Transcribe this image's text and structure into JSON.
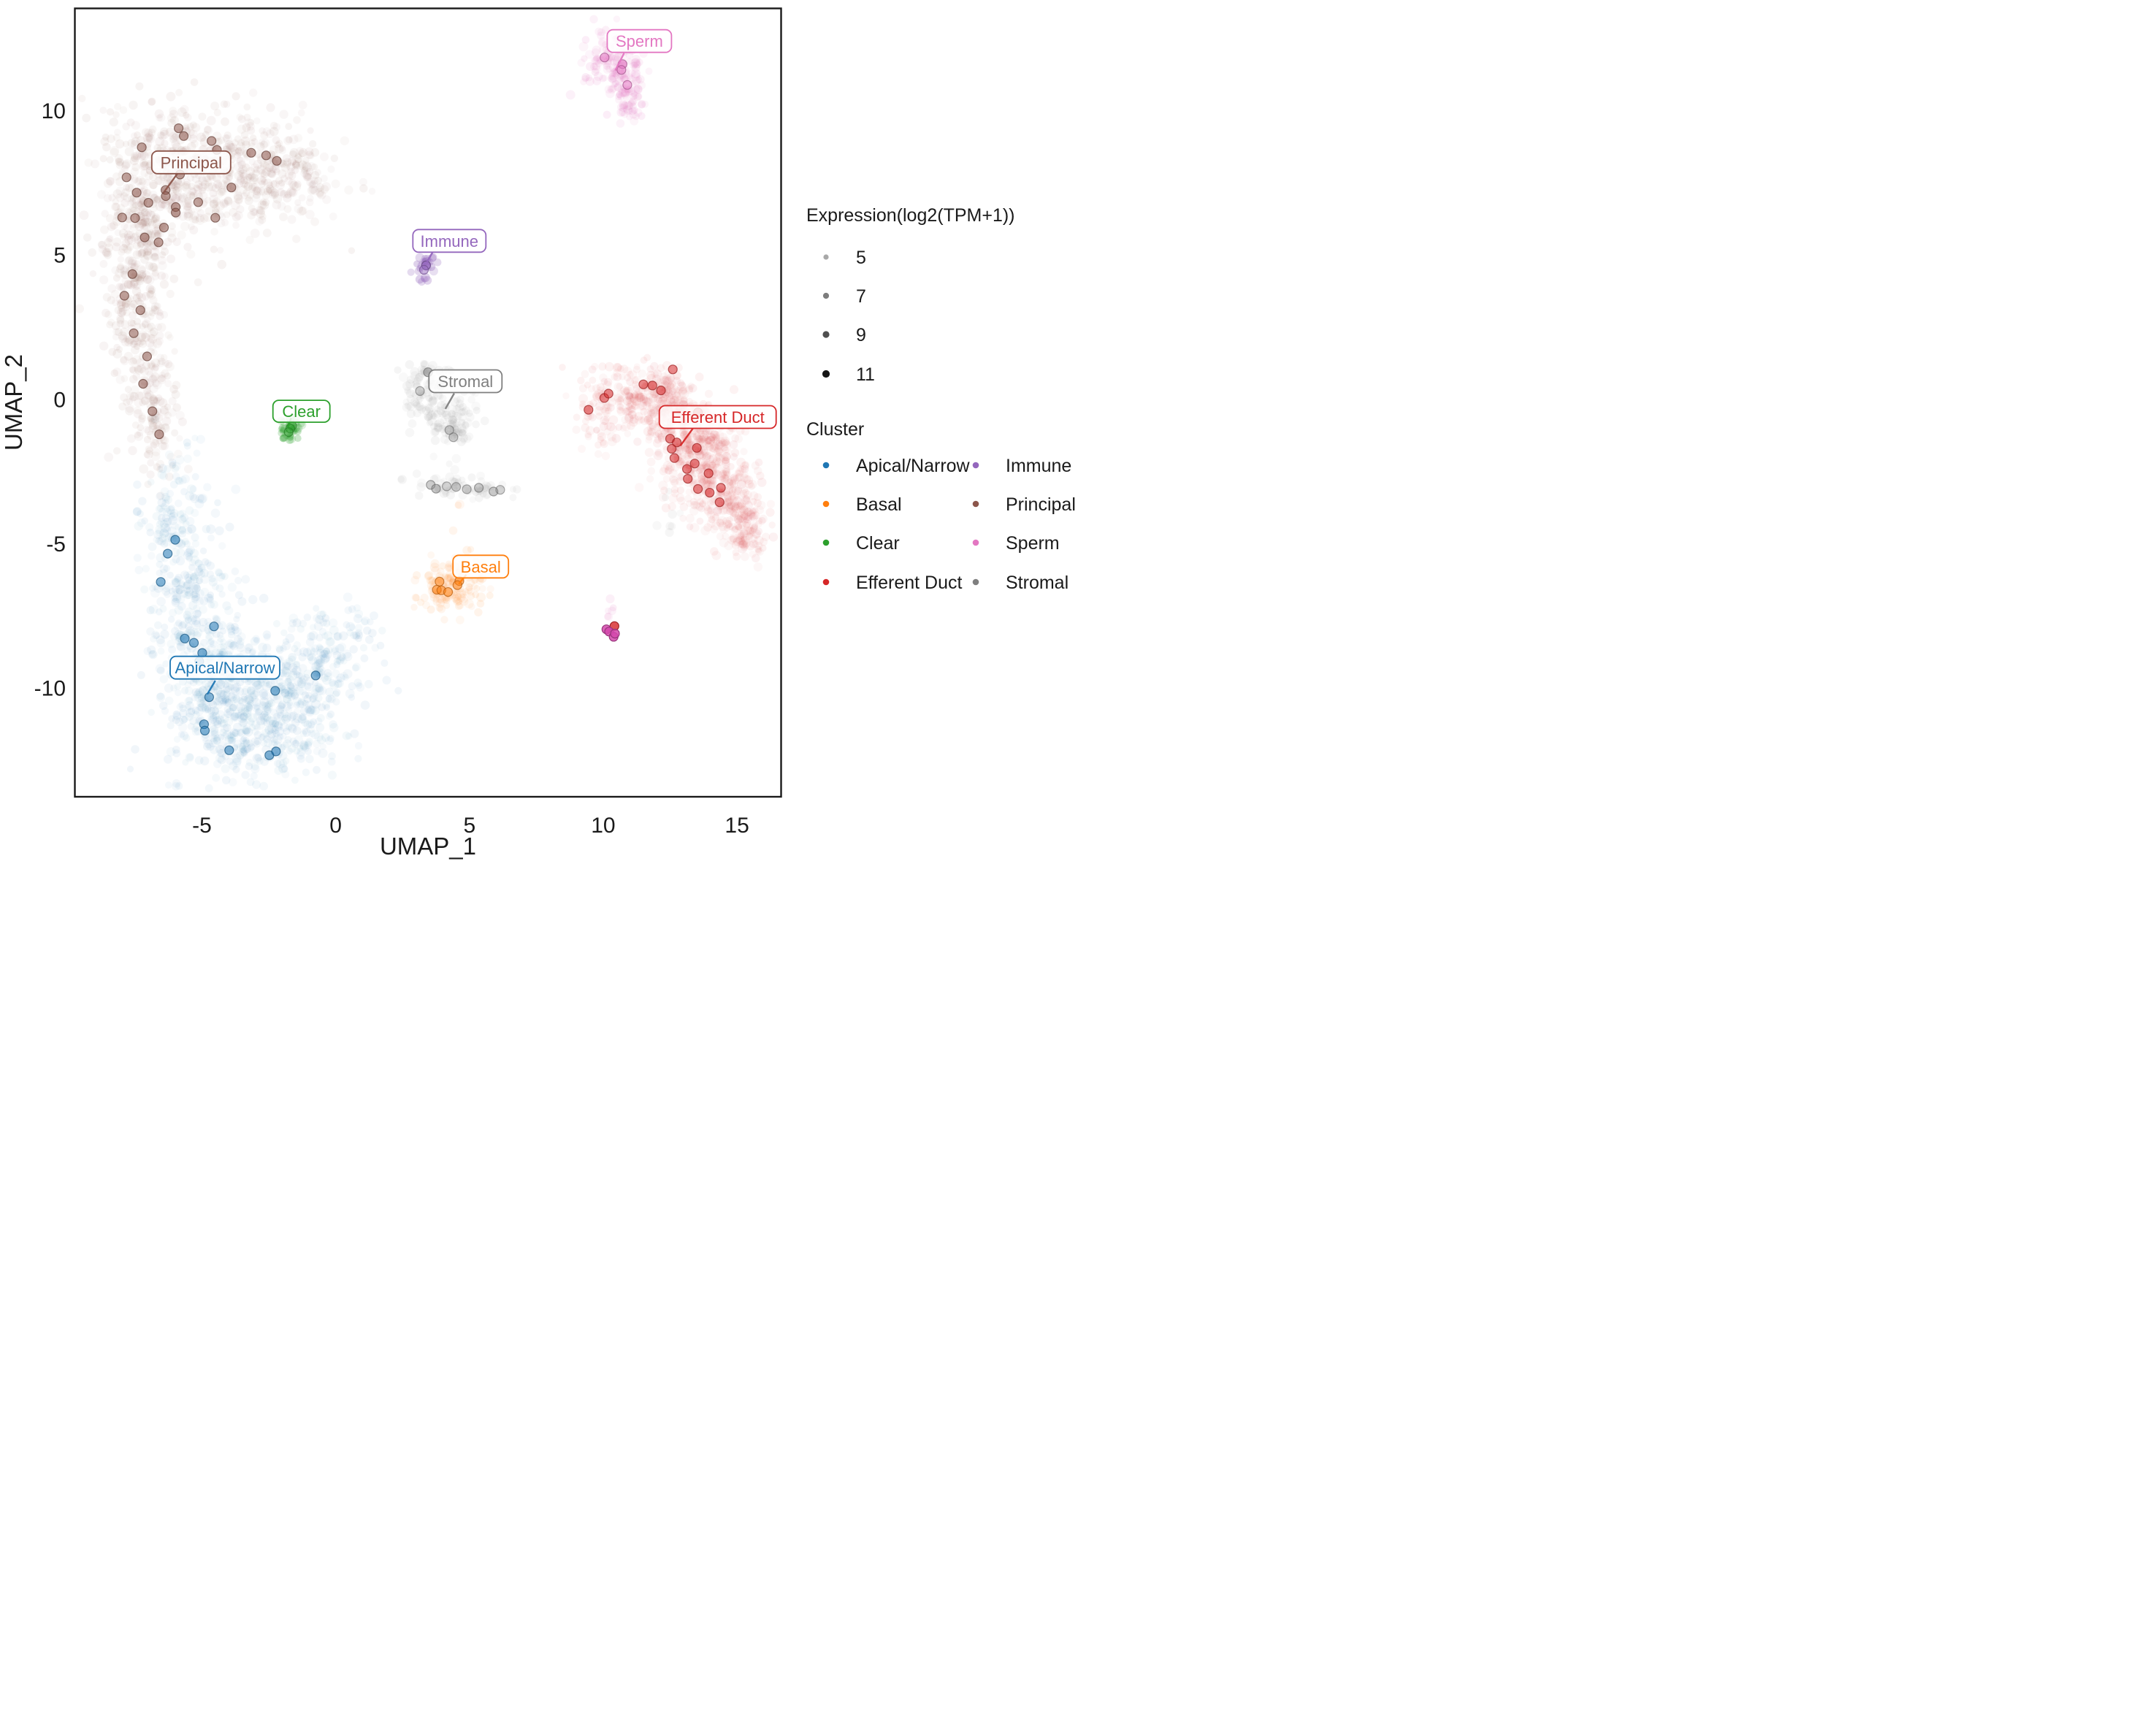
{
  "figure": {
    "background": "#ffffff",
    "border_color": "#1a1a1a"
  },
  "legend": {
    "cluster_title": "Cluster",
    "size_title": "Expression(log2(TPM+1))",
    "size_entries": [
      {
        "value": "5",
        "color": "#a8a8a8",
        "r": 3.6
      },
      {
        "value": "7",
        "color": "#7d7d7d",
        "r": 4.1
      },
      {
        "value": "9",
        "color": "#4f4f4f",
        "r": 4.6
      },
      {
        "value": "11",
        "color": "#161616",
        "r": 5.1
      }
    ],
    "cluster_columns": [
      [
        {
          "label": "Apical/Narrow",
          "color": "#1f77b4"
        },
        {
          "label": "Basal",
          "color": "#ff7f0e"
        },
        {
          "label": "Clear",
          "color": "#2ca02c"
        },
        {
          "label": "Efferent Duct",
          "color": "#d62728"
        }
      ],
      [
        {
          "label": "Immune",
          "color": "#9467bd"
        },
        {
          "label": "Principal",
          "color": "#8c564b"
        },
        {
          "label": "Sperm",
          "color": "#e377c2"
        },
        {
          "label": "Stromal",
          "color": "#7f7f7f"
        }
      ]
    ]
  },
  "chart_data": {
    "type": "scatter",
    "title": "",
    "xlabel": "UMAP_1",
    "ylabel": "UMAP_2",
    "xlim": [
      -9.75,
      16.65
    ],
    "ylim": [
      -13.75,
      13.55
    ],
    "xticks": [
      -5,
      0,
      5,
      10,
      15
    ],
    "yticks": [
      10,
      5,
      0,
      -5,
      -10
    ],
    "size_encoding": {
      "title": "Expression(log2(TPM+1))",
      "levels": [
        5,
        7,
        9,
        11
      ]
    },
    "clusters": [
      {
        "name": "Principal",
        "id": "principal",
        "color": "#8c564b",
        "cloud_alpha": 0.055,
        "label": {
          "text": "Principal",
          "x": -5.4,
          "y": 8.22,
          "w": 108,
          "h": 31,
          "leader": [
            -5.9,
            7.85,
            -6.45,
            7.15
          ]
        },
        "blobs": [
          [
            -4.6,
            8.4,
            2.0,
            0.95,
            -8,
            420
          ],
          [
            -2.2,
            7.6,
            0.9,
            0.75,
            -25,
            120
          ],
          [
            -5.7,
            7.0,
            1.3,
            1.0,
            0,
            200
          ],
          [
            -7.3,
            6.2,
            0.75,
            1.3,
            -12,
            200
          ],
          [
            -7.5,
            3.8,
            0.6,
            1.4,
            -5,
            170
          ],
          [
            -7.1,
            1.4,
            0.55,
            1.3,
            8,
            130
          ],
          [
            -6.7,
            -0.9,
            0.5,
            1.0,
            12,
            90
          ],
          [
            -1.25,
            8.2,
            0.22,
            0.22,
            0,
            8
          ],
          [
            -0.65,
            7.25,
            0.22,
            0.22,
            0,
            8
          ]
        ],
        "high_expression_points": [
          [
            -5.87,
            9.4
          ],
          [
            -5.68,
            9.13
          ],
          [
            -4.64,
            8.96
          ],
          [
            -4.44,
            8.65
          ],
          [
            -7.25,
            8.74
          ],
          [
            -3.16,
            8.55
          ],
          [
            -2.6,
            8.46
          ],
          [
            -2.2,
            8.27
          ],
          [
            -7.82,
            7.7
          ],
          [
            -5.82,
            7.8
          ],
          [
            -6.36,
            7.26
          ],
          [
            -7.44,
            7.17
          ],
          [
            -7.0,
            6.82
          ],
          [
            -6.35,
            7.05
          ],
          [
            -5.98,
            6.67
          ],
          [
            -5.14,
            6.84
          ],
          [
            -5.98,
            6.48
          ],
          [
            -7.98,
            6.31
          ],
          [
            -7.5,
            6.29
          ],
          [
            -6.42,
            5.96
          ],
          [
            -7.14,
            5.62
          ],
          [
            -6.62,
            5.45
          ],
          [
            -3.9,
            7.35
          ],
          [
            -4.5,
            6.3
          ],
          [
            -7.6,
            4.35
          ],
          [
            -7.9,
            3.6
          ],
          [
            -7.3,
            3.1
          ],
          [
            -7.55,
            2.3
          ],
          [
            -7.05,
            1.5
          ],
          [
            -7.2,
            0.55
          ],
          [
            -6.85,
            -0.4
          ],
          [
            -6.6,
            -1.2
          ]
        ]
      },
      {
        "name": "Apical/Narrow",
        "id": "apical-narrow",
        "color": "#1f77b4",
        "cloud_alpha": 0.05,
        "label": {
          "text": "Apical/Narrow",
          "x": -4.14,
          "y": -9.28,
          "w": 150,
          "h": 31,
          "leader": [
            -4.5,
            -9.73,
            -4.8,
            -10.2
          ]
        },
        "blobs": [
          [
            -6.1,
            -4.3,
            0.5,
            1.3,
            -6,
            150
          ],
          [
            -5.5,
            -7.0,
            0.65,
            1.3,
            -14,
            190
          ],
          [
            -4.6,
            -9.6,
            0.9,
            1.3,
            -28,
            280
          ],
          [
            -3.2,
            -11.5,
            1.3,
            1.0,
            8,
            300
          ],
          [
            -3.0,
            -9.7,
            1.2,
            0.9,
            0,
            100
          ],
          [
            -1.4,
            -10.6,
            0.8,
            1.1,
            38,
            170
          ],
          [
            -0.3,
            -8.9,
            0.6,
            0.9,
            42,
            110
          ],
          [
            0.9,
            -7.9,
            0.3,
            0.45,
            30,
            25
          ]
        ],
        "high_expression_points": [
          [
            -5.64,
            -8.27
          ],
          [
            -5.3,
            -8.42
          ],
          [
            -4.99,
            -8.77
          ],
          [
            -5.1,
            -9.06
          ],
          [
            -4.73,
            -10.3
          ],
          [
            -2.26,
            -10.08
          ],
          [
            -4.92,
            -11.24
          ],
          [
            -4.89,
            -11.46
          ],
          [
            -3.98,
            -12.14
          ],
          [
            -2.48,
            -12.31
          ],
          [
            -2.23,
            -12.18
          ],
          [
            -6.28,
            -5.33
          ],
          [
            -6.0,
            -4.85
          ],
          [
            -6.54,
            -6.31
          ],
          [
            -4.55,
            -7.85
          ],
          [
            -0.75,
            -9.55
          ]
        ]
      },
      {
        "name": "Stromal",
        "id": "stromal",
        "color": "#7f7f7f",
        "cloud_alpha": 0.06,
        "label": {
          "text": "Stromal",
          "x": 4.85,
          "y": 0.64,
          "w": 100,
          "h": 31,
          "leader": [
            4.43,
            0.22,
            4.1,
            -0.32
          ]
        },
        "blobs": [
          [
            3.35,
            0.55,
            0.45,
            0.5,
            -20,
            80
          ],
          [
            3.8,
            -0.35,
            0.4,
            0.5,
            -30,
            55
          ],
          [
            4.35,
            -1.1,
            0.4,
            0.42,
            -35,
            45
          ],
          [
            4.9,
            -0.5,
            0.3,
            0.45,
            30,
            22
          ],
          [
            4.7,
            -3.05,
            0.95,
            0.16,
            -3,
            60
          ],
          [
            4.35,
            -2.5,
            0.15,
            0.15,
            0,
            4
          ],
          [
            12.4,
            -4.0,
            0.3,
            0.45,
            -20,
            8
          ]
        ],
        "high_expression_points": [
          [
            3.45,
            0.95,
            0.45
          ],
          [
            3.15,
            0.3,
            0.35
          ],
          [
            4.25,
            -1.05,
            0.35
          ],
          [
            4.4,
            -1.3,
            0.35
          ],
          [
            3.55,
            -2.95,
            0.4
          ],
          [
            3.75,
            -3.08,
            0.4
          ],
          [
            4.15,
            -3.0,
            0.35
          ],
          [
            4.5,
            -3.02,
            0.35
          ],
          [
            4.9,
            -3.1,
            0.35
          ],
          [
            5.35,
            -3.05,
            0.4
          ],
          [
            5.9,
            -3.18,
            0.4
          ],
          [
            6.15,
            -3.12,
            0.35
          ]
        ]
      },
      {
        "name": "Clear",
        "id": "clear",
        "color": "#2ca02c",
        "cloud_alpha": 0.2,
        "label": {
          "text": "Clear",
          "x": -1.28,
          "y": -0.4,
          "w": 78,
          "h": 30,
          "leader": [
            -1.66,
            -0.63,
            -1.79,
            -0.97
          ]
        },
        "blobs": [
          [
            -1.73,
            -1.05,
            0.17,
            0.26,
            -38,
            34
          ],
          [
            -1.95,
            -1.35,
            0.07,
            0.07,
            0,
            3
          ]
        ],
        "high_expression_points": [
          [
            -1.63,
            -0.9,
            0.45
          ],
          [
            -1.7,
            -1.0,
            0.45
          ],
          [
            -1.76,
            -1.12,
            0.45
          ]
        ]
      },
      {
        "name": "Immune",
        "id": "immune",
        "color": "#9467bd",
        "cloud_alpha": 0.25,
        "label": {
          "text": "Immune",
          "x": 4.25,
          "y": 5.5,
          "w": 100,
          "h": 31,
          "leader": [
            3.62,
            5.1,
            3.4,
            4.75
          ]
        },
        "blobs": [
          [
            3.35,
            4.6,
            0.22,
            0.28,
            -30,
            26
          ]
        ],
        "high_expression_points": [
          [
            3.38,
            4.65,
            0.75
          ],
          [
            3.3,
            4.5,
            0.5
          ]
        ]
      },
      {
        "name": "Basal",
        "id": "basal",
        "color": "#ff7f0e",
        "cloud_alpha": 0.07,
        "label": {
          "text": "Basal",
          "x": 5.42,
          "y": -5.78,
          "w": 76,
          "h": 31,
          "leader": [
            4.88,
            -6.06,
            4.6,
            -6.38
          ]
        },
        "blobs": [
          [
            4.35,
            -6.45,
            0.6,
            0.5,
            0,
            150
          ],
          [
            4.6,
            -3.75,
            0.07,
            0.07,
            0,
            2
          ]
        ],
        "high_expression_points": [
          [
            3.88,
            -6.3
          ],
          [
            3.78,
            -6.58
          ],
          [
            3.95,
            -6.6
          ],
          [
            4.2,
            -6.66
          ],
          [
            4.62,
            -6.28
          ],
          [
            4.55,
            -6.42
          ]
        ]
      },
      {
        "name": "Efferent Duct",
        "id": "efferent-duct",
        "color": "#d62728",
        "cloud_alpha": 0.05,
        "label": {
          "text": "Efferent Duct",
          "x": 14.28,
          "y": -0.6,
          "w": 160,
          "h": 31,
          "leader": [
            13.35,
            -1.0,
            12.88,
            -1.6
          ]
        },
        "blobs": [
          [
            9.8,
            -0.6,
            0.45,
            0.65,
            25,
            60
          ],
          [
            11.3,
            0.15,
            0.85,
            0.5,
            -8,
            170
          ],
          [
            12.3,
            0.55,
            0.4,
            0.3,
            0,
            30
          ],
          [
            12.6,
            -0.55,
            0.85,
            0.55,
            -22,
            210
          ],
          [
            13.5,
            -1.7,
            0.85,
            0.75,
            -35,
            260
          ],
          [
            14.3,
            -3.0,
            0.75,
            0.75,
            -38,
            230
          ],
          [
            15.1,
            -4.1,
            0.5,
            0.55,
            -40,
            120
          ],
          [
            15.5,
            -4.85,
            0.3,
            0.3,
            0,
            40
          ]
        ],
        "high_expression_points": [
          [
            10.04,
            0.06
          ],
          [
            10.2,
            0.21
          ],
          [
            9.45,
            -0.35
          ],
          [
            11.5,
            0.53
          ],
          [
            11.84,
            0.49
          ],
          [
            12.16,
            0.32
          ],
          [
            12.6,
            1.05
          ],
          [
            13.54,
            -0.44
          ],
          [
            12.5,
            -1.35
          ],
          [
            12.75,
            -1.48
          ],
          [
            12.56,
            -1.7
          ],
          [
            13.5,
            -1.67
          ],
          [
            12.66,
            -2.02
          ],
          [
            13.42,
            -2.21
          ],
          [
            13.13,
            -2.4
          ],
          [
            13.94,
            -2.55
          ],
          [
            13.16,
            -2.74
          ],
          [
            13.54,
            -3.09
          ],
          [
            13.98,
            -3.22
          ],
          [
            14.4,
            -3.05
          ],
          [
            14.35,
            -3.55
          ],
          [
            10.42,
            -7.84,
            0.8
          ]
        ]
      },
      {
        "name": "Sperm",
        "id": "sperm",
        "color": "#e377c2",
        "accent_color": "#d348ab",
        "cloud_alpha": 0.1,
        "label": {
          "text": "Sperm",
          "x": 11.35,
          "y": 12.42,
          "w": 88,
          "h": 31,
          "leader": [
            10.78,
            12.0,
            10.45,
            11.4
          ]
        },
        "blobs": [
          [
            10.35,
            11.65,
            0.5,
            0.55,
            0,
            130
          ],
          [
            10.95,
            10.7,
            0.25,
            0.45,
            -25,
            40
          ],
          [
            11.15,
            10.05,
            0.22,
            0.3,
            0,
            26
          ],
          [
            10.27,
            -7.26,
            0.1,
            0.1,
            0,
            4
          ],
          [
            10.2,
            -7.51,
            0.05,
            0.05,
            0,
            2
          ]
        ],
        "high_expression_points": [
          [
            10.05,
            11.85,
            0.55
          ],
          [
            10.72,
            11.62,
            0.55
          ],
          [
            10.68,
            11.42,
            0.55
          ],
          [
            10.9,
            10.9,
            0.55
          ],
          [
            10.12,
            -7.95,
            0.85,
            "accent"
          ],
          [
            10.22,
            -8.03,
            0.85,
            "accent"
          ],
          [
            10.39,
            -8.21,
            0.85,
            "accent"
          ],
          [
            10.44,
            -8.1,
            0.85,
            "accent"
          ]
        ]
      }
    ]
  }
}
